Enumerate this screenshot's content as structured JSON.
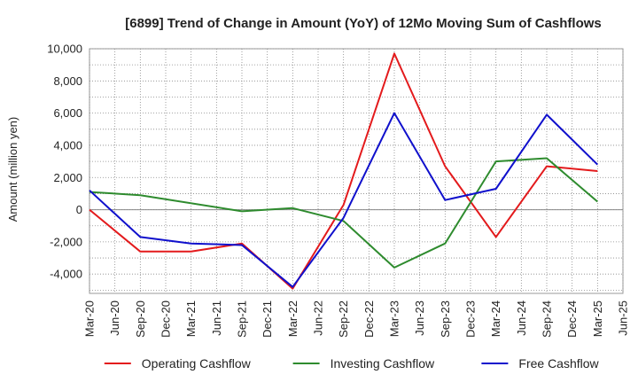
{
  "chart_data": {
    "type": "line",
    "title": "[6899]  Trend of Change in Amount (YoY) of 12Mo Moving Sum of Cashflows",
    "xlabel": "",
    "ylabel": "Amount (million yen)",
    "ylim": [
      -5200,
      10000
    ],
    "yticks": [
      -4000,
      -2000,
      0,
      2000,
      4000,
      6000,
      8000,
      10000
    ],
    "ytick_labels": [
      "-4,000",
      "-2,000",
      "0",
      "2,000",
      "4,000",
      "6,000",
      "8,000",
      "10,000"
    ],
    "categories": [
      "Mar-20",
      "Jun-20",
      "Sep-20",
      "Dec-20",
      "Mar-21",
      "Jun-21",
      "Sep-21",
      "Dec-21",
      "Mar-22",
      "Jun-22",
      "Sep-22",
      "Dec-22",
      "Mar-23",
      "Jun-23",
      "Sep-23",
      "Dec-23",
      "Mar-24",
      "Jun-24",
      "Sep-24",
      "Dec-24",
      "Mar-25",
      "Jun-25"
    ],
    "series": [
      {
        "name": "Operating Cashflow",
        "color": "#e31a1c",
        "values": [
          0,
          null,
          -2600,
          null,
          -2600,
          null,
          -2100,
          null,
          -4900,
          null,
          300,
          null,
          9700,
          null,
          2700,
          null,
          -1700,
          null,
          2700,
          null,
          2400,
          null
        ]
      },
      {
        "name": "Investing Cashflow",
        "color": "#2e8b2e",
        "values": [
          1100,
          null,
          900,
          null,
          null,
          null,
          -100,
          null,
          100,
          null,
          -700,
          null,
          -3600,
          null,
          -2100,
          null,
          3000,
          null,
          3200,
          null,
          500,
          null
        ]
      },
      {
        "name": "Free Cashflow",
        "color": "#1010cc",
        "values": [
          1200,
          null,
          -1700,
          null,
          -2100,
          null,
          -2200,
          null,
          -4800,
          null,
          -500,
          null,
          6000,
          null,
          600,
          null,
          1300,
          null,
          5900,
          null,
          2800,
          null
        ]
      }
    ],
    "grid": true,
    "legend": "bottom"
  }
}
